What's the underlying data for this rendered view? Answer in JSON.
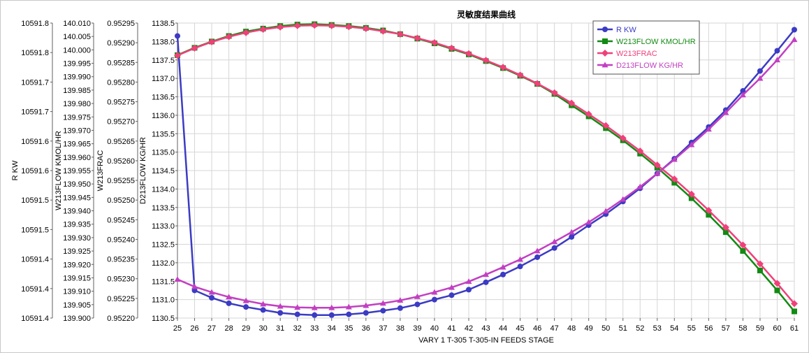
{
  "chart_data": {
    "type": "line",
    "title": "灵敏度结果曲线",
    "xlabel": "VARY   1 T-305 T-305-IN FEEDS STAGE",
    "x": [
      25,
      26,
      27,
      28,
      29,
      30,
      31,
      32,
      33,
      34,
      35,
      36,
      37,
      38,
      39,
      40,
      41,
      42,
      43,
      44,
      45,
      46,
      47,
      48,
      49,
      50,
      51,
      52,
      53,
      54,
      55,
      56,
      57,
      58,
      59,
      60,
      61
    ],
    "xlim": [
      25,
      61
    ],
    "grid": true,
    "legend_position": "top-right",
    "axes": [
      {
        "id": "rkw",
        "label": "R KW",
        "ticks": [
          "10591.4",
          "10591.4",
          "10591.4",
          "10591.5",
          "10591.5",
          "10591.6",
          "10591.6",
          "10591.7",
          "10591.7",
          "10591.8",
          "10591.8"
        ]
      },
      {
        "id": "w213flow",
        "label": "W213FLOW KMOL/HR",
        "ticks": [
          "139.900",
          "139.905",
          "139.910",
          "139.915",
          "139.920",
          "139.925",
          "139.930",
          "139.935",
          "139.940",
          "139.945",
          "139.950",
          "139.955",
          "139.960",
          "139.965",
          "139.970",
          "139.975",
          "139.980",
          "139.985",
          "139.990",
          "139.995",
          "140.000",
          "140.005",
          "140.010"
        ]
      },
      {
        "id": "w213frac",
        "label": "W213FRAC",
        "ticks": [
          "0.95220",
          "0.95225",
          "0.95230",
          "0.95235",
          "0.95240",
          "0.95245",
          "0.95250",
          "0.95255",
          "0.95260",
          "0.95265",
          "0.95270",
          "0.95275",
          "0.95280",
          "0.95285",
          "0.95290",
          "0.95295"
        ]
      },
      {
        "id": "d213flow",
        "label": "D213FLOW KG/HR",
        "ylim": [
          1130.5,
          1138.5
        ],
        "ticks": [
          "1130.5",
          "1131.0",
          "1131.5",
          "1132.0",
          "1132.5",
          "1133.0",
          "1133.5",
          "1134.0",
          "1134.5",
          "1135.0",
          "1135.5",
          "1136.0",
          "1136.5",
          "1137.0",
          "1137.5",
          "1138.0",
          "1138.5"
        ]
      }
    ],
    "series": [
      {
        "name": "R KW",
        "color": "#3b3bc4",
        "marker": "circle",
        "values": [
          1138.15,
          1131.25,
          1131.05,
          1130.9,
          1130.8,
          1130.72,
          1130.64,
          1130.6,
          1130.58,
          1130.58,
          1130.6,
          1130.64,
          1130.7,
          1130.77,
          1130.87,
          1131.0,
          1131.12,
          1131.27,
          1131.47,
          1131.68,
          1131.9,
          1132.15,
          1132.4,
          1132.7,
          1133.02,
          1133.32,
          1133.66,
          1134.02,
          1134.42,
          1134.82,
          1135.26,
          1135.68,
          1136.14,
          1136.66,
          1137.2,
          1137.75,
          1138.32
        ]
      },
      {
        "name": "W213FLOW KMOL/HR",
        "color": "#138a13",
        "marker": "square",
        "values": [
          1137.63,
          1137.83,
          1138.0,
          1138.15,
          1138.27,
          1138.35,
          1138.42,
          1138.46,
          1138.47,
          1138.45,
          1138.42,
          1138.37,
          1138.3,
          1138.2,
          1138.08,
          1137.95,
          1137.8,
          1137.65,
          1137.47,
          1137.28,
          1137.07,
          1136.85,
          1136.58,
          1136.27,
          1135.97,
          1135.65,
          1135.32,
          1134.96,
          1134.58,
          1134.17,
          1133.75,
          1133.3,
          1132.83,
          1132.32,
          1131.79,
          1131.25,
          1130.68
        ]
      },
      {
        "name": "W213FRAC",
        "color": "#f0407a",
        "marker": "diamond",
        "values": [
          1137.62,
          1137.82,
          1137.99,
          1138.13,
          1138.24,
          1138.33,
          1138.39,
          1138.43,
          1138.44,
          1138.43,
          1138.4,
          1138.35,
          1138.28,
          1138.2,
          1138.09,
          1137.97,
          1137.82,
          1137.67,
          1137.49,
          1137.3,
          1137.09,
          1136.86,
          1136.61,
          1136.33,
          1136.03,
          1135.72,
          1135.38,
          1135.03,
          1134.65,
          1134.27,
          1133.86,
          1133.42,
          1132.96,
          1132.48,
          1131.97,
          1131.44,
          1130.89
        ]
      },
      {
        "name": "D213FLOW KG/HR",
        "color": "#c23fc2",
        "marker": "triangle",
        "values": [
          1131.55,
          1131.35,
          1131.2,
          1131.07,
          1130.97,
          1130.88,
          1130.82,
          1130.79,
          1130.78,
          1130.78,
          1130.8,
          1130.84,
          1130.9,
          1130.98,
          1131.08,
          1131.2,
          1131.33,
          1131.49,
          1131.68,
          1131.88,
          1132.09,
          1132.32,
          1132.57,
          1132.83,
          1133.1,
          1133.4,
          1133.72,
          1134.06,
          1134.42,
          1134.8,
          1135.2,
          1135.62,
          1136.07,
          1136.55,
          1137.0,
          1137.5,
          1138.05
        ]
      }
    ]
  }
}
